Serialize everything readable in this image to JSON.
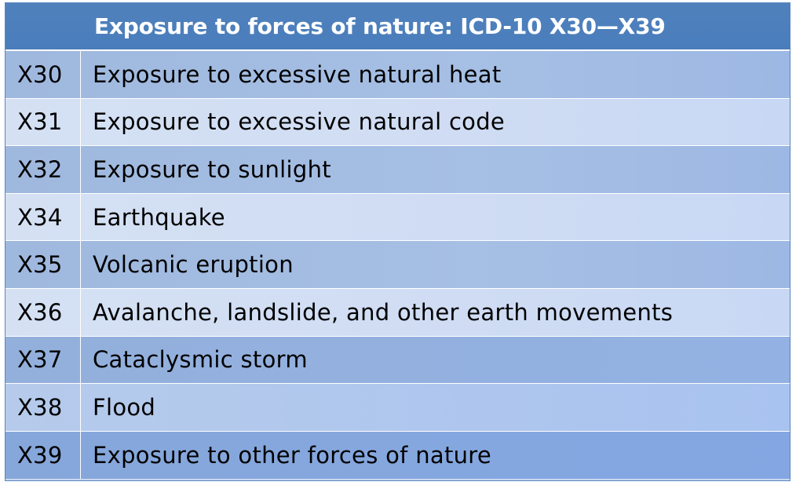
{
  "table": {
    "title": "Exposure to forces of nature: ICD-10 X30—X39",
    "rows": [
      {
        "code": "X30",
        "description": "Exposure to excessive natural heat"
      },
      {
        "code": "X31",
        "description": "Exposure to excessive natural code"
      },
      {
        "code": "X32",
        "description": "Exposure to sunlight"
      },
      {
        "code": "X34",
        "description": "Earthquake"
      },
      {
        "code": "X35",
        "description": "Volcanic eruption"
      },
      {
        "code": "X36",
        "description": "Avalanche, landslide, and other earth movements"
      },
      {
        "code": "X37",
        "description": "Cataclysmic storm"
      },
      {
        "code": "X38",
        "description": "Flood"
      },
      {
        "code": "X39",
        "description": "Exposure to other forces of nature"
      }
    ]
  },
  "colors": {
    "header_bg": "#4f81bd",
    "header_text": "#ffffff",
    "band_dark": "#9fb8de",
    "band_light": "#d5e1f3"
  }
}
